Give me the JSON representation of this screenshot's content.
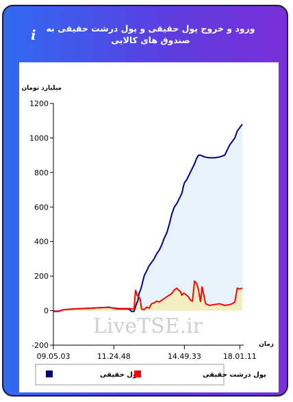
{
  "title": "ورود و خروج پول حقیقی و پول درشت حقیقی به صندوق های کالایی",
  "info_icon": "info-icon",
  "watermark": "LiveTSE.ir",
  "chart_data": {
    "type": "line",
    "ylabel": "میلیارد تومان",
    "xlabel": "زمان",
    "ylim": [
      -200,
      1200
    ],
    "yticks": [
      -200,
      0,
      200,
      400,
      600,
      800,
      1000,
      1200
    ],
    "xticks": [
      "09.05.03",
      "11.24.48",
      "14.49.33",
      "18.01.11"
    ],
    "xtick_index": [
      0,
      120,
      260,
      370
    ],
    "grid": false,
    "legend_position": "bottom",
    "series": [
      {
        "name": "پول حقیقی",
        "color": "#000080",
        "fill": "#e8f2fb",
        "points": [
          [
            0,
            -5
          ],
          [
            10,
            -5
          ],
          [
            20,
            5
          ],
          [
            40,
            10
          ],
          [
            60,
            12
          ],
          [
            80,
            15
          ],
          [
            100,
            18
          ],
          [
            110,
            20
          ],
          [
            118,
            15
          ],
          [
            128,
            10
          ],
          [
            150,
            10
          ],
          [
            155,
            -5
          ],
          [
            160,
            -5
          ],
          [
            165,
            40
          ],
          [
            168,
            60
          ],
          [
            170,
            100
          ],
          [
            173,
            120
          ],
          [
            175,
            140
          ],
          [
            180,
            200
          ],
          [
            185,
            230
          ],
          [
            190,
            260
          ],
          [
            195,
            280
          ],
          [
            200,
            300
          ],
          [
            205,
            330
          ],
          [
            210,
            350
          ],
          [
            215,
            380
          ],
          [
            220,
            420
          ],
          [
            225,
            450
          ],
          [
            230,
            500
          ],
          [
            235,
            560
          ],
          [
            240,
            600
          ],
          [
            245,
            620
          ],
          [
            250,
            650
          ],
          [
            255,
            680
          ],
          [
            258,
            720
          ],
          [
            260,
            740
          ],
          [
            265,
            760
          ],
          [
            270,
            790
          ],
          [
            275,
            820
          ],
          [
            280,
            850
          ],
          [
            284,
            880
          ],
          [
            288,
            900
          ],
          [
            292,
            900
          ],
          [
            296,
            895
          ],
          [
            300,
            890
          ],
          [
            310,
            885
          ],
          [
            320,
            885
          ],
          [
            330,
            890
          ],
          [
            340,
            900
          ],
          [
            345,
            930
          ],
          [
            350,
            960
          ],
          [
            355,
            980
          ],
          [
            360,
            1000
          ],
          [
            365,
            1040
          ],
          [
            370,
            1060
          ],
          [
            375,
            1080
          ]
        ]
      },
      {
        "name": "پول درشت حقیقی",
        "color": "#ff0000",
        "fill": "#f3eec0",
        "points": [
          [
            0,
            -3
          ],
          [
            10,
            -3
          ],
          [
            20,
            5
          ],
          [
            40,
            10
          ],
          [
            60,
            12
          ],
          [
            80,
            15
          ],
          [
            100,
            18
          ],
          [
            110,
            18
          ],
          [
            120,
            15
          ],
          [
            130,
            12
          ],
          [
            150,
            12
          ],
          [
            155,
            10
          ],
          [
            160,
            10
          ],
          [
            163,
            120
          ],
          [
            166,
            90
          ],
          [
            169,
            80
          ],
          [
            172,
            70
          ],
          [
            175,
            10
          ],
          [
            180,
            5
          ],
          [
            185,
            20
          ],
          [
            190,
            15
          ],
          [
            195,
            40
          ],
          [
            200,
            45
          ],
          [
            205,
            55
          ],
          [
            210,
            50
          ],
          [
            215,
            60
          ],
          [
            220,
            70
          ],
          [
            225,
            80
          ],
          [
            230,
            90
          ],
          [
            235,
            100
          ],
          [
            240,
            120
          ],
          [
            245,
            130
          ],
          [
            248,
            120
          ],
          [
            252,
            110
          ],
          [
            255,
            90
          ],
          [
            258,
            100
          ],
          [
            260,
            100
          ],
          [
            264,
            90
          ],
          [
            268,
            80
          ],
          [
            272,
            60
          ],
          [
            276,
            55
          ],
          [
            280,
            170
          ],
          [
            284,
            160
          ],
          [
            288,
            120
          ],
          [
            292,
            50
          ],
          [
            295,
            140
          ],
          [
            298,
            100
          ],
          [
            302,
            40
          ],
          [
            306,
            35
          ],
          [
            310,
            30
          ],
          [
            320,
            35
          ],
          [
            330,
            40
          ],
          [
            340,
            30
          ],
          [
            350,
            35
          ],
          [
            355,
            40
          ],
          [
            360,
            50
          ],
          [
            365,
            130
          ],
          [
            370,
            125
          ],
          [
            375,
            130
          ]
        ]
      }
    ]
  }
}
